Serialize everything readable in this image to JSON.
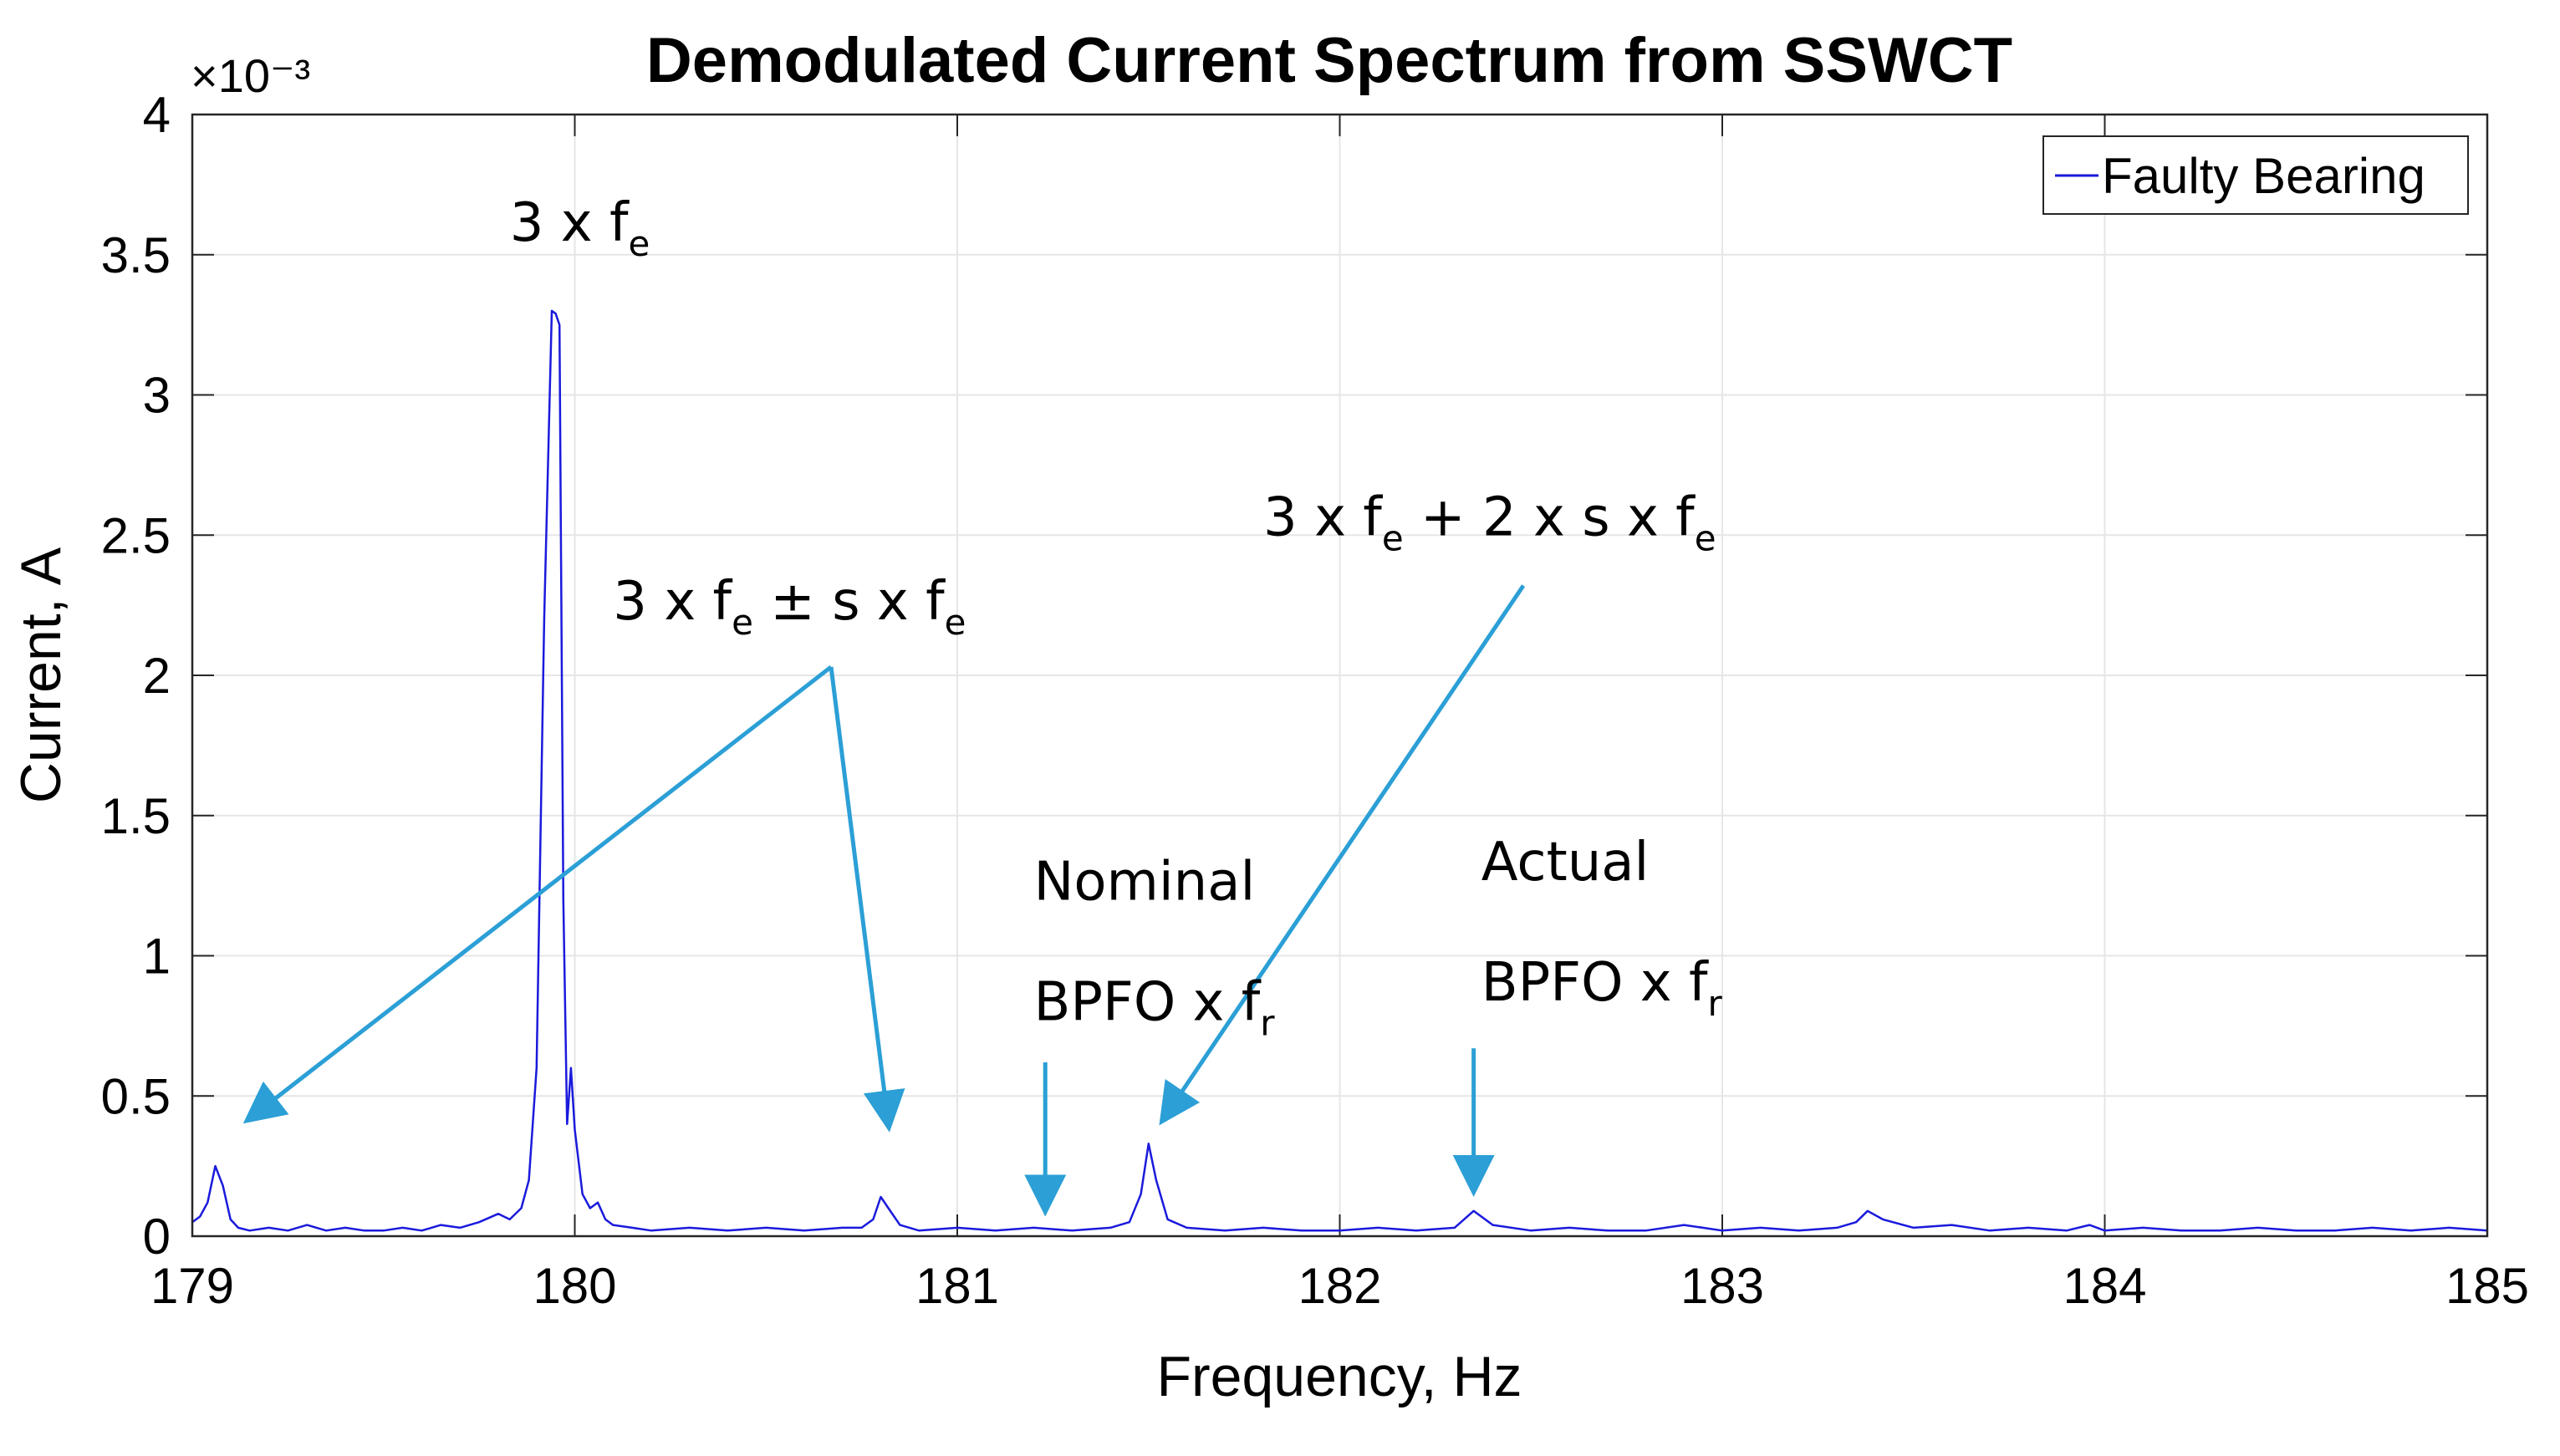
{
  "chart_data": {
    "type": "line",
    "title": "Demodulated Current Spectrum from SSWCT",
    "xlabel": "Frequency, Hz",
    "ylabel": "Current, A",
    "y_exponent": "×10⁻³",
    "xlim": [
      179,
      185
    ],
    "ylim": [
      0,
      4
    ],
    "x_ticks": [
      179,
      180,
      181,
      182,
      183,
      184,
      185
    ],
    "y_ticks": [
      0,
      0.5,
      1,
      1.5,
      2,
      2.5,
      3,
      3.5,
      4
    ],
    "y_tick_labels": [
      "0",
      "0.5",
      "1",
      "1.5",
      "2",
      "2.5",
      "3",
      "3.5",
      "4"
    ],
    "grid": true,
    "legend": {
      "position": "top-right",
      "entries": [
        "Faulty Bearing"
      ]
    },
    "series": [
      {
        "name": "Faulty Bearing",
        "color": "#1a1adc",
        "x": [
          179.0,
          179.02,
          179.04,
          179.06,
          179.08,
          179.1,
          179.12,
          179.15,
          179.2,
          179.25,
          179.3,
          179.35,
          179.4,
          179.45,
          179.5,
          179.55,
          179.6,
          179.65,
          179.7,
          179.75,
          179.8,
          179.83,
          179.86,
          179.88,
          179.9,
          179.92,
          179.94,
          179.95,
          179.96,
          179.97,
          179.98,
          179.99,
          180.0,
          180.02,
          180.04,
          180.06,
          180.08,
          180.1,
          180.15,
          180.2,
          180.3,
          180.4,
          180.5,
          180.6,
          180.7,
          180.75,
          180.78,
          180.8,
          180.82,
          180.85,
          180.9,
          181.0,
          181.1,
          181.2,
          181.3,
          181.4,
          181.45,
          181.48,
          181.5,
          181.52,
          181.55,
          181.6,
          181.7,
          181.8,
          181.9,
          182.0,
          182.1,
          182.2,
          182.3,
          182.35,
          182.4,
          182.5,
          182.6,
          182.7,
          182.8,
          182.9,
          183.0,
          183.1,
          183.2,
          183.3,
          183.35,
          183.38,
          183.42,
          183.5,
          183.6,
          183.7,
          183.8,
          183.9,
          183.96,
          184.0,
          184.1,
          184.2,
          184.3,
          184.4,
          184.5,
          184.6,
          184.7,
          184.8,
          184.9,
          185.0
        ],
        "values": [
          0.05,
          0.07,
          0.12,
          0.25,
          0.18,
          0.06,
          0.03,
          0.02,
          0.03,
          0.02,
          0.04,
          0.02,
          0.03,
          0.02,
          0.02,
          0.03,
          0.02,
          0.04,
          0.03,
          0.05,
          0.08,
          0.06,
          0.1,
          0.2,
          0.6,
          2.2,
          3.3,
          3.29,
          3.25,
          1.2,
          0.4,
          0.6,
          0.38,
          0.15,
          0.1,
          0.12,
          0.06,
          0.04,
          0.03,
          0.02,
          0.03,
          0.02,
          0.03,
          0.02,
          0.03,
          0.03,
          0.06,
          0.14,
          0.1,
          0.04,
          0.02,
          0.03,
          0.02,
          0.03,
          0.02,
          0.03,
          0.05,
          0.15,
          0.33,
          0.2,
          0.06,
          0.03,
          0.02,
          0.03,
          0.02,
          0.02,
          0.03,
          0.02,
          0.03,
          0.09,
          0.04,
          0.02,
          0.03,
          0.02,
          0.02,
          0.04,
          0.02,
          0.03,
          0.02,
          0.03,
          0.05,
          0.09,
          0.06,
          0.03,
          0.04,
          0.02,
          0.03,
          0.02,
          0.04,
          0.02,
          0.03,
          0.02,
          0.02,
          0.03,
          0.02,
          0.02,
          0.03,
          0.02,
          0.03,
          0.02
        ]
      }
    ],
    "annotations": [
      {
        "id": "fundamental",
        "x": 179.83,
        "y": 3.55,
        "segments": [
          {
            "t": "3 x f"
          },
          {
            "t": "e",
            "sub": true
          }
        ],
        "arrows": []
      },
      {
        "id": "slip-sidebands",
        "x": 180.1,
        "y": 2.2,
        "segments": [
          {
            "t": "3 x f"
          },
          {
            "t": "e",
            "sub": true
          },
          {
            "t": " ± s x f"
          },
          {
            "t": "e",
            "sub": true
          }
        ],
        "arrows": [
          {
            "from": [
              180.67,
              2.03
            ],
            "to": [
              179.15,
              0.42
            ]
          },
          {
            "from": [
              180.67,
              2.03
            ],
            "to": [
              180.82,
              0.4
            ]
          }
        ]
      },
      {
        "id": "double-slip",
        "x": 181.8,
        "y": 2.5,
        "segments": [
          {
            "t": "3 x f"
          },
          {
            "t": "e",
            "sub": true
          },
          {
            "t": " + 2 x s x f"
          },
          {
            "t": "e",
            "sub": true
          }
        ],
        "arrows": [
          {
            "from": [
              182.48,
              2.32
            ],
            "to": [
              181.54,
              0.42
            ]
          }
        ]
      },
      {
        "id": "nominal-label",
        "x": 181.2,
        "y": 1.2,
        "segments": [
          {
            "t": "Nominal"
          }
        ],
        "arrows": []
      },
      {
        "id": "nominal-bpfo",
        "x": 181.2,
        "y": 0.77,
        "segments": [
          {
            "t": "BPFO x f"
          },
          {
            "t": "r",
            "sub": true
          }
        ],
        "arrows": [
          {
            "from": [
              181.23,
              0.62
            ],
            "to": [
              181.23,
              0.1
            ]
          }
        ]
      },
      {
        "id": "actual-label",
        "x": 182.37,
        "y": 1.27,
        "segments": [
          {
            "t": "Actual"
          }
        ],
        "arrows": []
      },
      {
        "id": "actual-bpfo",
        "x": 182.37,
        "y": 0.84,
        "segments": [
          {
            "t": "BPFO x f"
          },
          {
            "t": "r",
            "sub": true
          }
        ],
        "arrows": [
          {
            "from": [
              182.35,
              0.67
            ],
            "to": [
              182.35,
              0.17
            ]
          }
        ]
      }
    ]
  }
}
